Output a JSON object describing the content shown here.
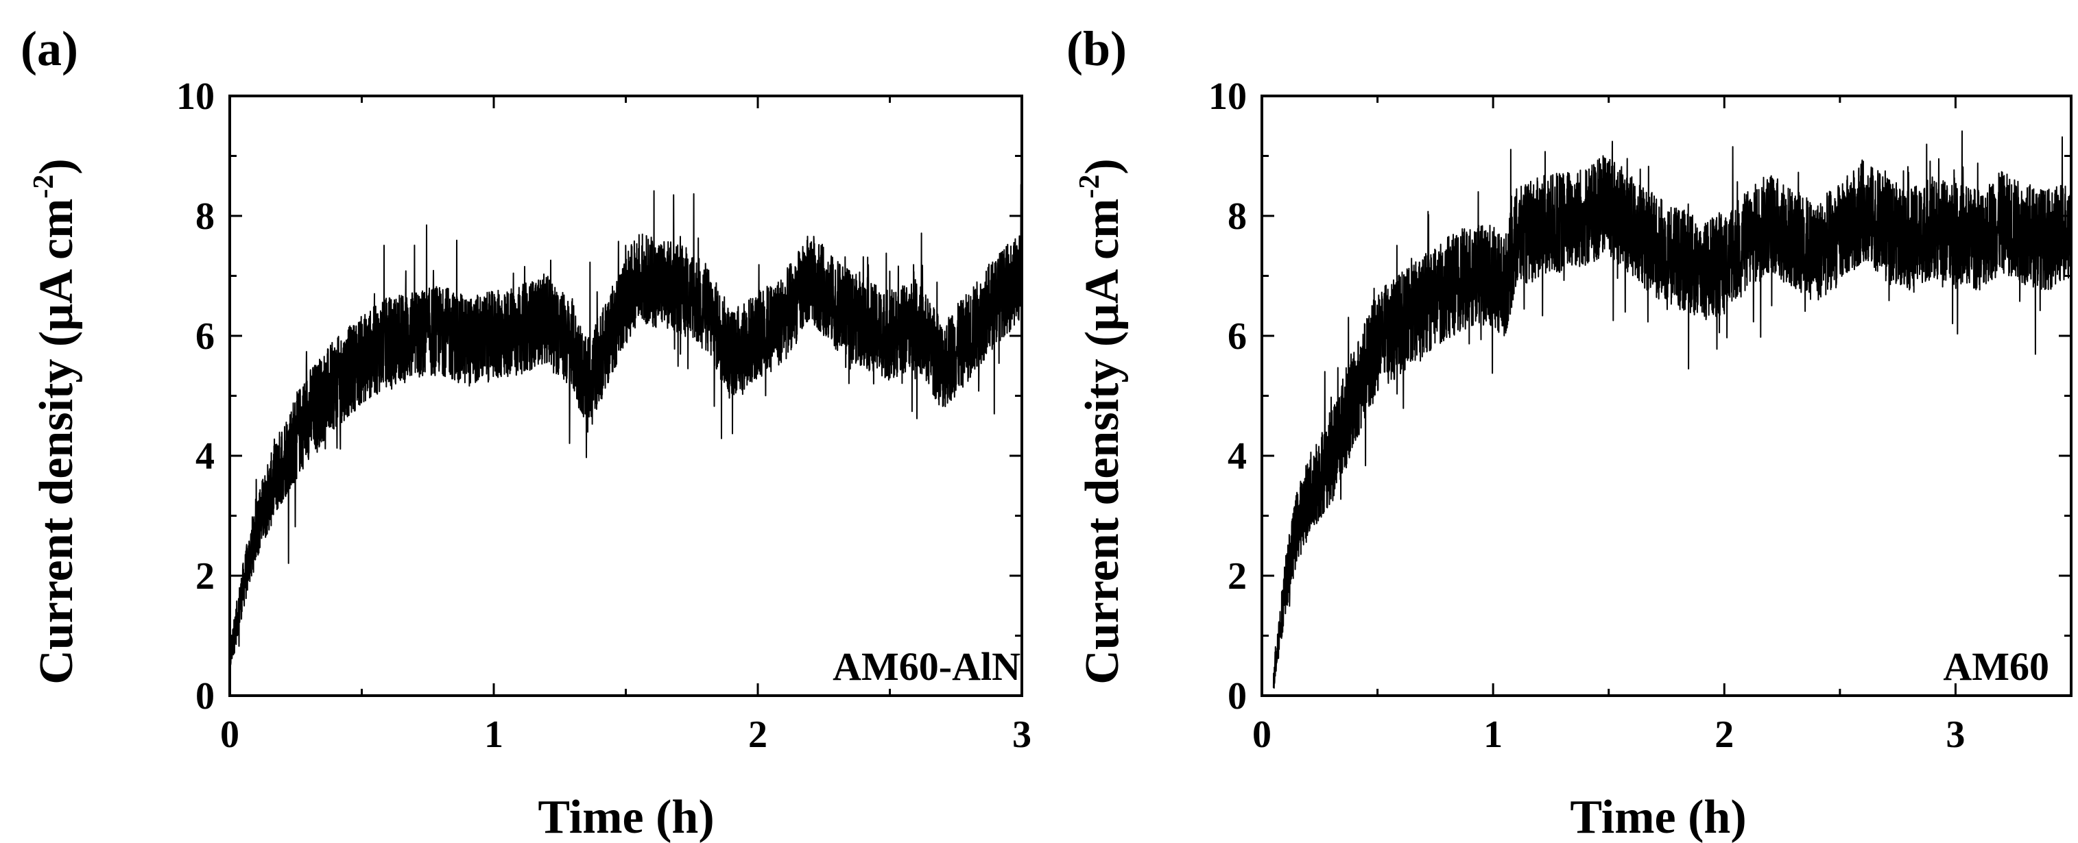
{
  "chart_data": [
    {
      "type": "line",
      "panel_label": "(a)",
      "annotation": "AM60-AlN",
      "xlabel": "Time (h)",
      "ylabel_main": "Current density (μA cm",
      "ylabel_sup": "-2",
      "ylabel_end": ")",
      "xlim": [
        0,
        3
      ],
      "ylim": [
        0,
        10
      ],
      "xticks": [
        0,
        1,
        2,
        3
      ],
      "yticks": [
        0,
        2,
        4,
        6,
        8,
        10
      ],
      "xtick_labels": [
        "0",
        "1",
        "2",
        "3"
      ],
      "ytick_labels": [
        "0",
        "2",
        "4",
        "6",
        "8",
        "10"
      ],
      "series": [
        {
          "name": "AM60-AlN",
          "color": "#000000",
          "noise": 0.75,
          "x": [
            0,
            0.05,
            0.1,
            0.2,
            0.3,
            0.4,
            0.5,
            0.6,
            0.7,
            0.8,
            0.9,
            1.0,
            1.1,
            1.2,
            1.3,
            1.35,
            1.4,
            1.5,
            1.55,
            1.6,
            1.7,
            1.8,
            1.9,
            2.0,
            2.1,
            2.2,
            2.3,
            2.4,
            2.5,
            2.6,
            2.7,
            2.8,
            2.9,
            3.0
          ],
          "y": [
            0.6,
            1.8,
            2.8,
            3.9,
            4.7,
            5.2,
            5.6,
            5.9,
            6.0,
            6.1,
            5.9,
            6.0,
            6.1,
            6.3,
            5.8,
            5.2,
            5.6,
            6.6,
            7.0,
            6.9,
            6.8,
            6.5,
            5.7,
            6.0,
            6.3,
            7.0,
            6.5,
            6.2,
            6.0,
            6.2,
            5.5,
            6.0,
            6.6,
            7.0
          ]
        }
      ]
    },
    {
      "type": "line",
      "panel_label": "(b)",
      "annotation": "AM60",
      "xlabel": "Time (h)",
      "ylabel_main": "Current density (μA cm",
      "ylabel_sup": "-2",
      "ylabel_end": ")",
      "xlim": [
        0,
        3.5
      ],
      "ylim": [
        0,
        10
      ],
      "xticks": [
        0,
        1,
        2,
        3
      ],
      "yticks": [
        0,
        2,
        4,
        6,
        8,
        10
      ],
      "xtick_labels": [
        "0",
        "1",
        "2",
        "3"
      ],
      "ytick_labels": [
        "0",
        "2",
        "4",
        "6",
        "8",
        "10"
      ],
      "series": [
        {
          "name": "AM60",
          "color": "#000000",
          "noise": 0.85,
          "x": [
            0.05,
            0.1,
            0.15,
            0.2,
            0.3,
            0.4,
            0.5,
            0.6,
            0.7,
            0.8,
            0.9,
            1.0,
            1.05,
            1.1,
            1.2,
            1.3,
            1.4,
            1.5,
            1.6,
            1.7,
            1.8,
            1.9,
            2.0,
            2.1,
            2.2,
            2.3,
            2.4,
            2.5,
            2.6,
            2.7,
            2.8,
            2.9,
            3.0,
            3.1,
            3.2,
            3.3,
            3.4,
            3.5
          ],
          "y": [
            0.3,
            1.8,
            2.8,
            3.3,
            4.0,
            5.0,
            5.9,
            6.2,
            6.5,
            6.8,
            7.0,
            7.0,
            6.8,
            7.6,
            7.8,
            7.9,
            8.0,
            8.2,
            7.8,
            7.5,
            7.3,
            7.1,
            7.2,
            7.6,
            7.9,
            7.6,
            7.4,
            7.7,
            8.1,
            7.8,
            7.6,
            7.8,
            7.7,
            7.6,
            7.9,
            7.7,
            7.6,
            7.8
          ]
        }
      ]
    }
  ]
}
